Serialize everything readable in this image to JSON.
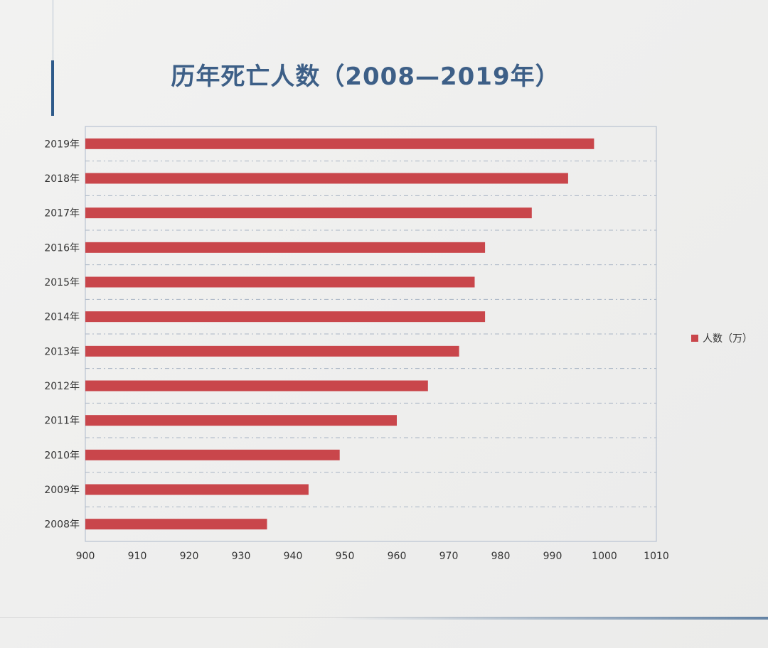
{
  "chart_data": {
    "type": "bar",
    "orientation": "horizontal",
    "title": "历年死亡人数（2008—2019年）",
    "categories": [
      "2019年",
      "2018年",
      "2017年",
      "2016年",
      "2015年",
      "2014年",
      "2013年",
      "2012年",
      "2011年",
      "2010年",
      "2009年",
      "2008年"
    ],
    "series": [
      {
        "name": "人数（万）",
        "values": [
          998,
          993,
          986,
          977,
          975,
          977,
          972,
          966,
          960,
          949,
          943,
          935
        ]
      }
    ],
    "xlim": [
      900,
      1010
    ],
    "xticks": [
      "900",
      "910",
      "920",
      "930",
      "940",
      "950",
      "960",
      "970",
      "980",
      "990",
      "1000",
      "1010"
    ],
    "grid": "horizontal dash-dot",
    "legend_position": "right",
    "colors": {
      "bar": "#c9464b",
      "title": "#3d5f87",
      "grid": "#a8b4c4",
      "axis_frame": "#b9c3d1"
    }
  }
}
